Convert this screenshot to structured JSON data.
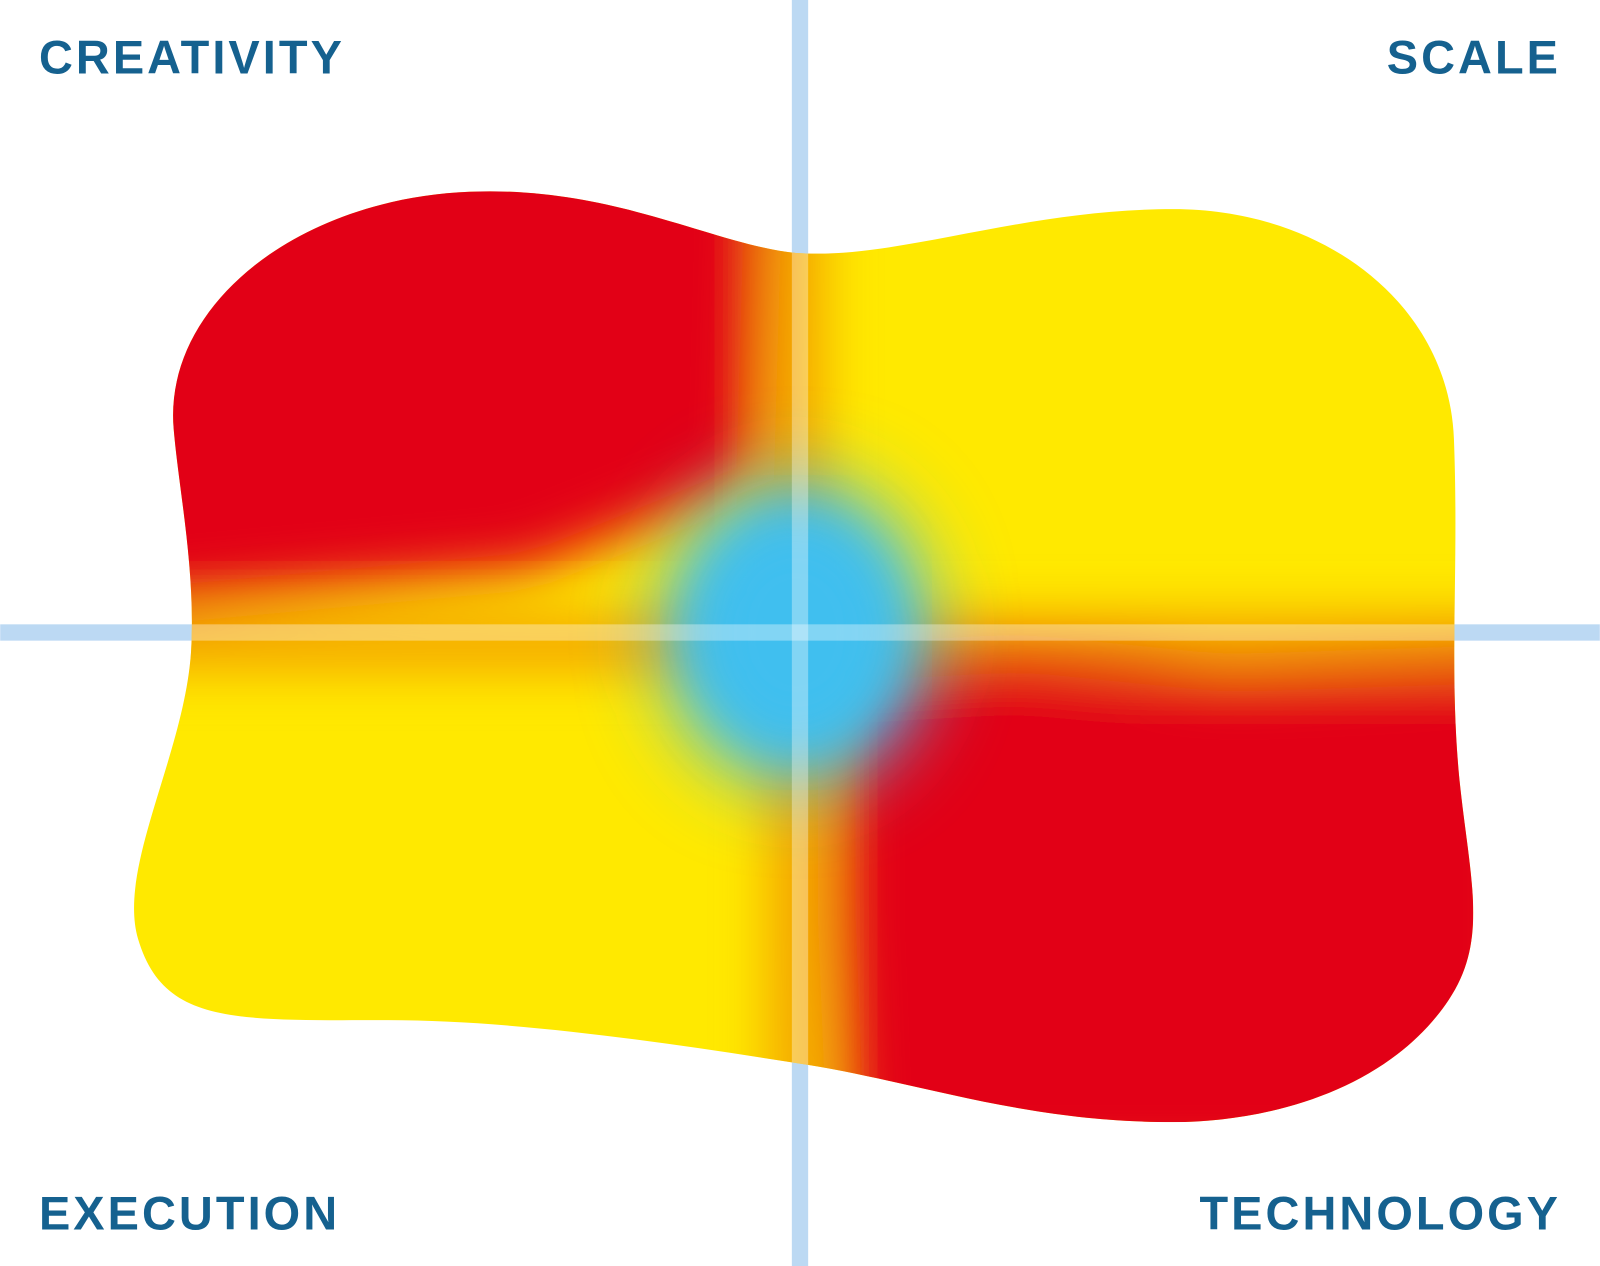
{
  "labels": {
    "top_left": "CREATIVITY",
    "top_right": "SCALE",
    "bottom_left": "EXECUTION",
    "bottom_right": "TECHNOLOGY"
  }
}
